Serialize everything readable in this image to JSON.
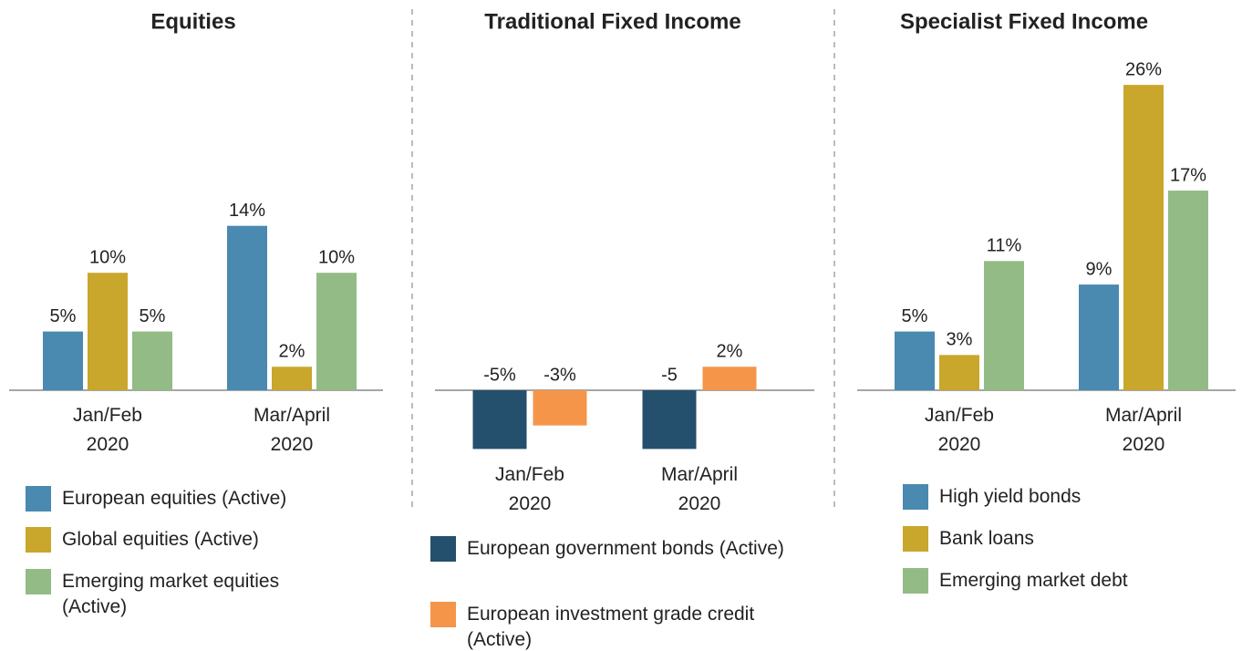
{
  "chart_data": [
    {
      "type": "bar",
      "title": "Equities",
      "categories": [
        "Jan/Feb 2020",
        "Mar/April 2020"
      ],
      "series": [
        {
          "name": "European equities (Active)",
          "color": "#4a89b0",
          "values": [
            5,
            14
          ],
          "value_labels": [
            "5%",
            "14%"
          ]
        },
        {
          "name": "Global equities (Active)",
          "color": "#c9a62c",
          "values": [
            10,
            2
          ],
          "value_labels": [
            "10%",
            "2%"
          ]
        },
        {
          "name": "Emerging market equities (Active)",
          "color": "#93bb85",
          "values": [
            5,
            10
          ],
          "value_labels": [
            "5%",
            "10%"
          ]
        }
      ]
    },
    {
      "type": "bar",
      "title": "Traditional Fixed Income",
      "categories": [
        "Jan/Feb 2020",
        "Mar/April 2020"
      ],
      "series": [
        {
          "name": "European government bonds (Active)",
          "color": "#24506e",
          "values": [
            -5,
            -5
          ],
          "value_labels": [
            "-5%",
            "-5"
          ]
        },
        {
          "name": "European investment grade credit (Active)",
          "color": "#f5954a",
          "values": [
            -3,
            2
          ],
          "value_labels": [
            "-3%",
            "2%"
          ]
        }
      ]
    },
    {
      "type": "bar",
      "title": "Specialist Fixed Income",
      "categories": [
        "Jan/Feb 2020",
        "Mar/April 2020"
      ],
      "series": [
        {
          "name": "High yield bonds",
          "color": "#4a89b0",
          "values": [
            5,
            9
          ],
          "value_labels": [
            "5%",
            "9%"
          ]
        },
        {
          "name": "Bank loans",
          "color": "#c9a62c",
          "values": [
            3,
            26
          ],
          "value_labels": [
            "3%",
            "26%"
          ]
        },
        {
          "name": "Emerging market debt",
          "color": "#93bb85",
          "values": [
            11,
            17
          ],
          "value_labels": [
            "11%",
            "17%"
          ]
        }
      ]
    }
  ]
}
